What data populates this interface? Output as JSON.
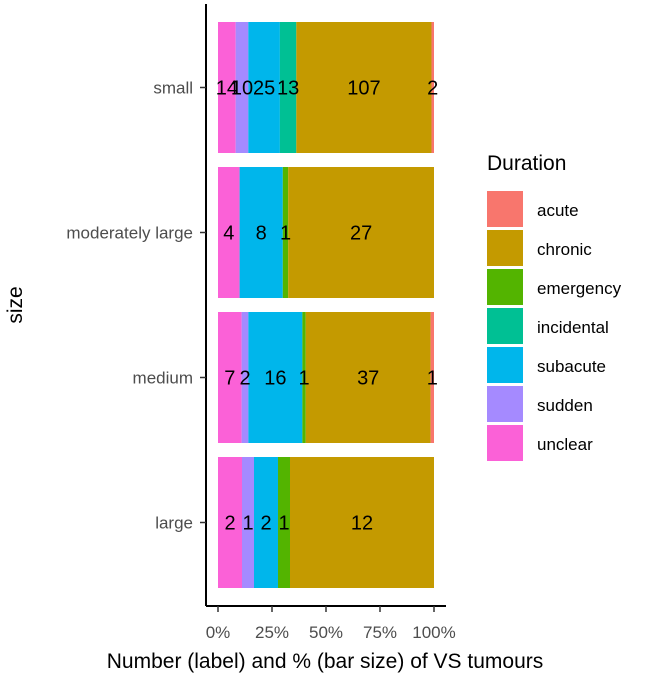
{
  "chart_data": {
    "type": "bar",
    "orientation": "horizontal",
    "stacked": "percent",
    "xlabel": "Number (label) and % (bar size) of VS tumours",
    "ylabel": "size",
    "x_ticks": [
      "0%",
      "25%",
      "50%",
      "75%",
      "100%"
    ],
    "categories": [
      "small",
      "moderately large",
      "medium",
      "large"
    ],
    "legend": {
      "title": "Duration",
      "position": "right",
      "entries": [
        "acute",
        "chronic",
        "emergency",
        "incidental",
        "subacute",
        "sudden",
        "unclear"
      ]
    },
    "colors": {
      "acute": "#F8766D",
      "chronic": "#C49A00",
      "emergency": "#53B400",
      "incidental": "#00C094",
      "subacute": "#00B6EB",
      "sudden": "#A58AFF",
      "unclear": "#FB61D7"
    },
    "stack_order": [
      "unclear",
      "sudden",
      "subacute",
      "incidental",
      "emergency",
      "chronic",
      "acute"
    ],
    "series": [
      {
        "name": "acute",
        "values": [
          2,
          0,
          1,
          0
        ]
      },
      {
        "name": "chronic",
        "values": [
          107,
          27,
          37,
          12
        ]
      },
      {
        "name": "emergency",
        "values": [
          0,
          1,
          1,
          1
        ]
      },
      {
        "name": "incidental",
        "values": [
          13,
          0,
          0,
          0
        ]
      },
      {
        "name": "subacute",
        "values": [
          25,
          8,
          16,
          2
        ]
      },
      {
        "name": "sudden",
        "values": [
          10,
          0,
          2,
          1
        ]
      },
      {
        "name": "unclear",
        "values": [
          14,
          4,
          7,
          2
        ]
      }
    ],
    "grid": false
  }
}
